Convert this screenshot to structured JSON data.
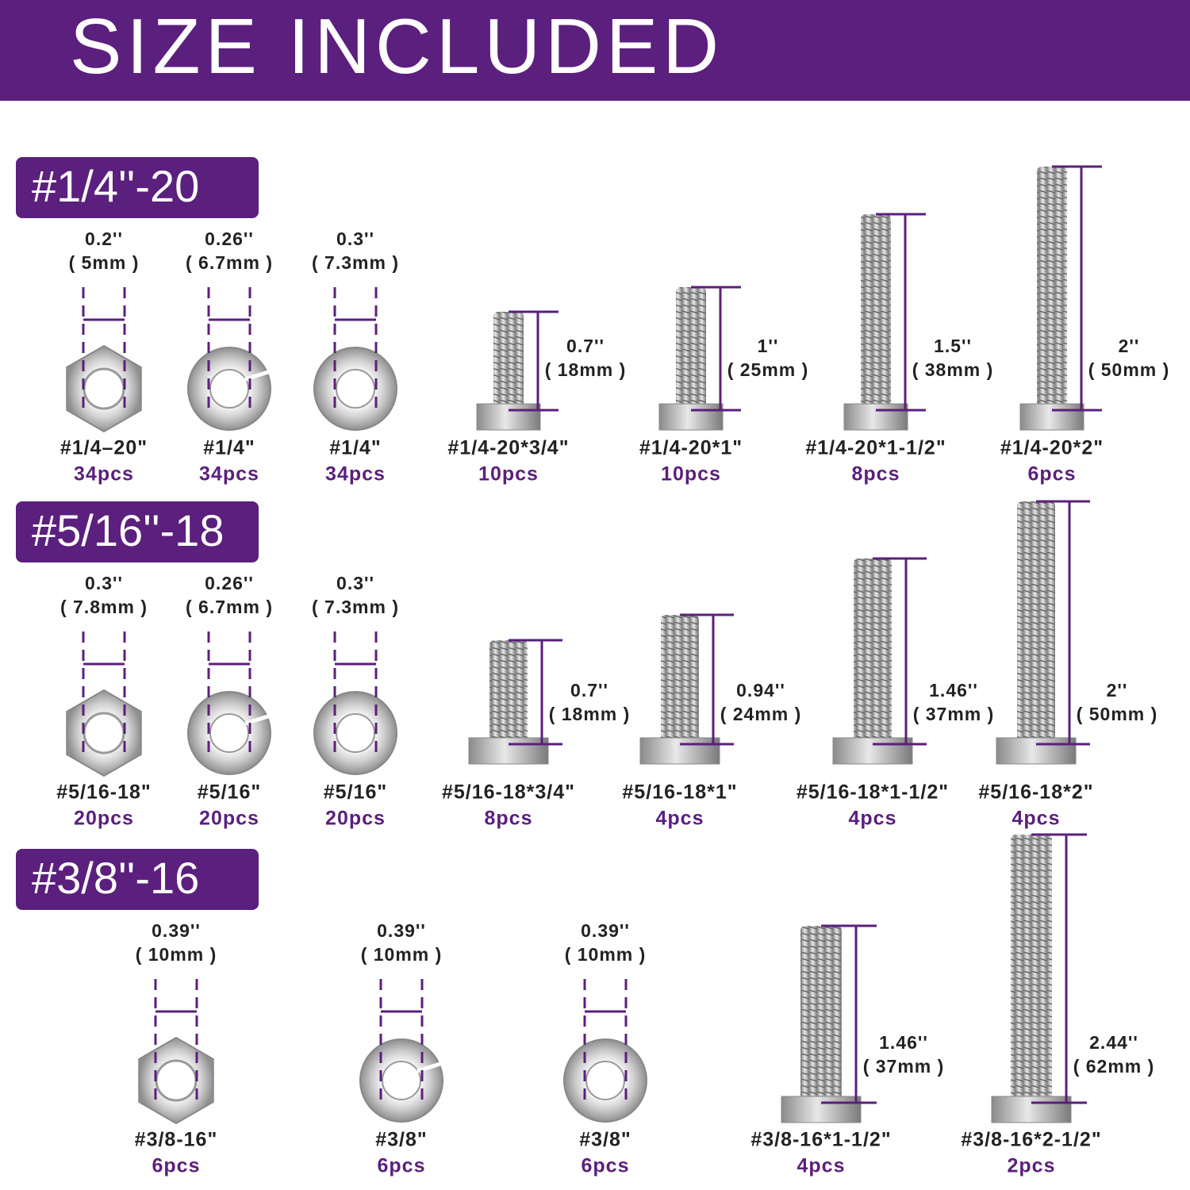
{
  "header": {
    "title": "SIZE INCLUDED"
  },
  "sections": [
    {
      "label": "#1/4''-20",
      "items": [
        {
          "size": "0.2''",
          "metric": "( 5mm )",
          "name": "#1/4–20\"",
          "count": "34pcs"
        },
        {
          "size": "0.26''",
          "metric": "( 6.7mm )",
          "name": "#1/4\"",
          "count": "34pcs"
        },
        {
          "size": "0.3''",
          "metric": "( 7.3mm )",
          "name": "#1/4\"",
          "count": "34pcs"
        },
        {
          "size": "0.7''",
          "metric": "( 18mm )",
          "name": "#1/4-20*3/4\"",
          "count": "10pcs"
        },
        {
          "size": "1''",
          "metric": "( 25mm )",
          "name": "#1/4-20*1\"",
          "count": "10pcs"
        },
        {
          "size": "1.5''",
          "metric": "( 38mm )",
          "name": "#1/4-20*1-1/2\"",
          "count": "8pcs"
        },
        {
          "size": "2''",
          "metric": "( 50mm )",
          "name": "#1/4-20*2\"",
          "count": "6pcs"
        }
      ]
    },
    {
      "label": "#5/16''-18",
      "items": [
        {
          "size": "0.3''",
          "metric": "( 7.8mm )",
          "name": "#5/16-18\"",
          "count": "20pcs"
        },
        {
          "size": "0.26''",
          "metric": "( 6.7mm )",
          "name": "#5/16\"",
          "count": "20pcs"
        },
        {
          "size": "0.3''",
          "metric": "( 7.3mm )",
          "name": "#5/16\"",
          "count": "20pcs"
        },
        {
          "size": "0.7''",
          "metric": "( 18mm )",
          "name": "#5/16-18*3/4\"",
          "count": "8pcs"
        },
        {
          "size": "0.94''",
          "metric": "( 24mm )",
          "name": "#5/16-18*1\"",
          "count": "4pcs"
        },
        {
          "size": "1.46''",
          "metric": "( 37mm )",
          "name": "#5/16-18*1-1/2\"",
          "count": "4pcs"
        },
        {
          "size": "2''",
          "metric": "( 50mm )",
          "name": "#5/16-18*2\"",
          "count": "4pcs"
        }
      ]
    },
    {
      "label": "#3/8''-16",
      "items": [
        {
          "size": "0.39''",
          "metric": "( 10mm )",
          "name": "#3/8-16\"",
          "count": "6pcs"
        },
        {
          "size": "0.39''",
          "metric": "( 10mm )",
          "name": "#3/8\"",
          "count": "6pcs"
        },
        {
          "size": "0.39''",
          "metric": "( 10mm )",
          "name": "#3/8\"",
          "count": "6pcs"
        },
        {
          "size": "1.46''",
          "metric": "( 37mm )",
          "name": "#3/8-16*1-1/2\"",
          "count": "4pcs"
        },
        {
          "size": "2.44''",
          "metric": "( 62mm )",
          "name": "#3/8-16*2-1/2\"",
          "count": "2pcs"
        }
      ]
    }
  ]
}
